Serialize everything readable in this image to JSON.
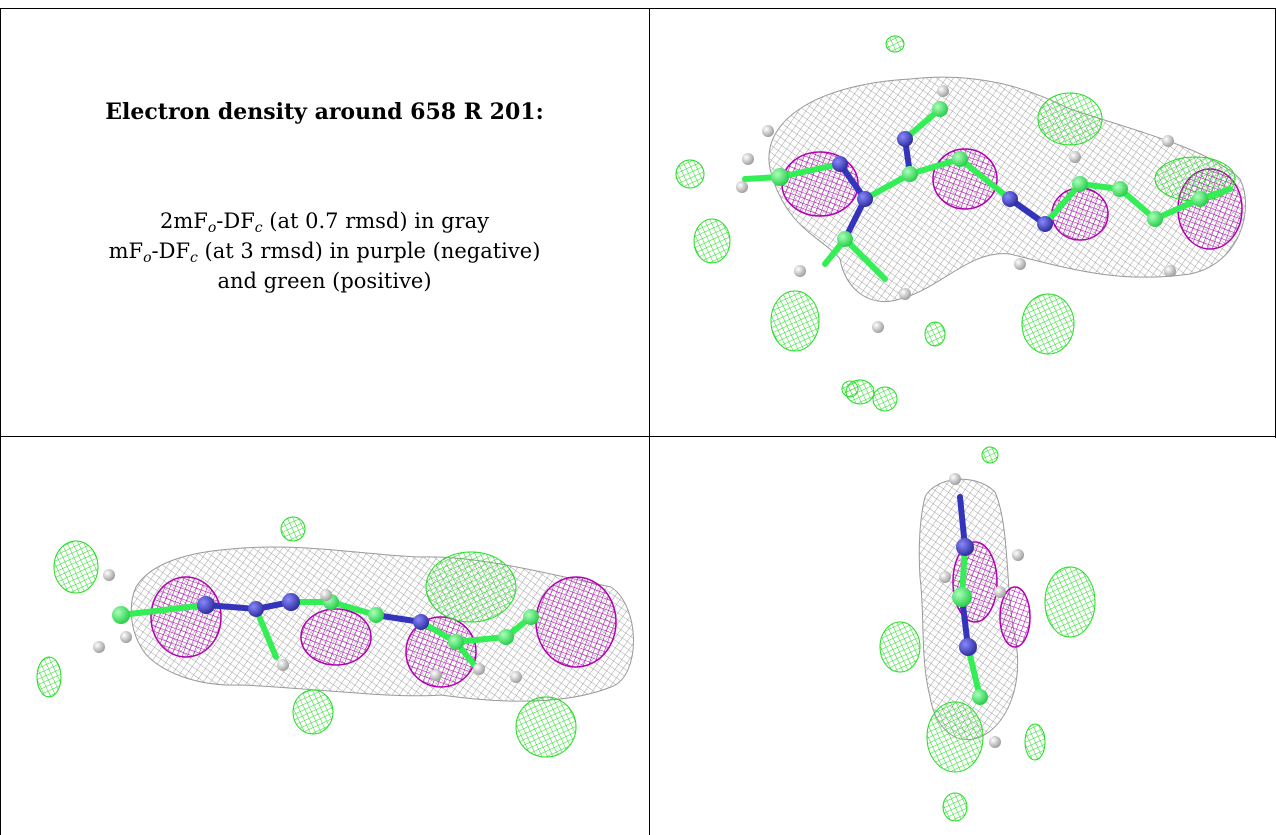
{
  "caption": {
    "title": "Electron density around 658 R 201:",
    "line1": {
      "a": "2mF",
      "a_sub": "o",
      "b": "-DF",
      "b_sub": "c",
      "rest": " (at 0.7 rmsd) in gray"
    },
    "line2": {
      "a": "mF",
      "a_sub": "o",
      "b": "-DF",
      "b_sub": "c",
      "rest": " (at 3 rmsd) in purple (negative)"
    },
    "line3": "and green (positive)"
  },
  "colors": {
    "mesh_gray": "#8c8c8c",
    "negative_purple": "#b000b0",
    "positive_green": "#22dd22",
    "carbon_green": "#33ee55",
    "nitrogen_blue": "#3333bb",
    "hydrogen_white": "#dddddd"
  },
  "panels": [
    {
      "view": "top-right",
      "density": "2mFo-DFc gray mesh with difference peaks"
    },
    {
      "view": "bottom-left",
      "density": "side view"
    },
    {
      "view": "bottom-right",
      "density": "end-on view"
    }
  ]
}
